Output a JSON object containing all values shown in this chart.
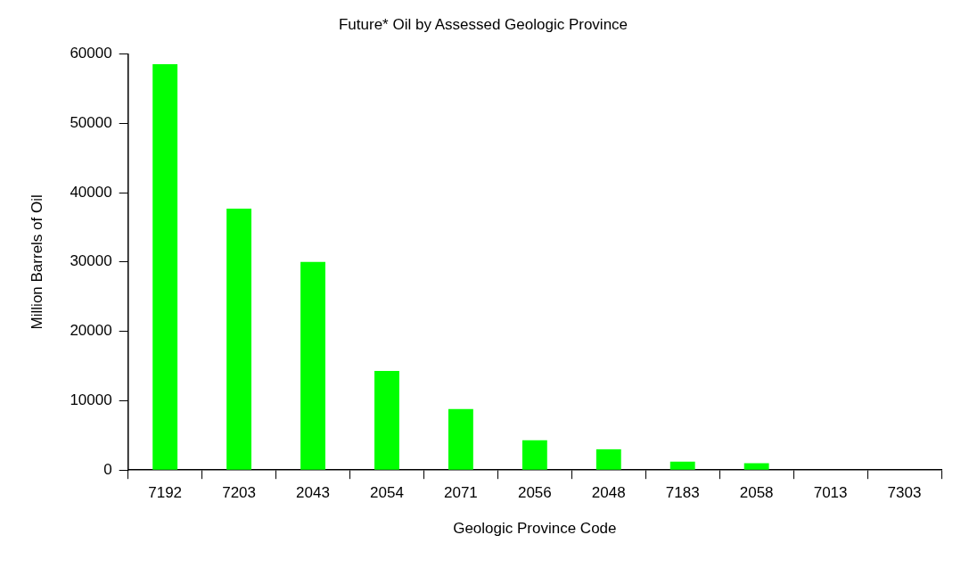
{
  "chart_data": {
    "type": "bar",
    "title": "Future* Oil by Assessed Geologic Province",
    "xlabel": "Geologic Province Code",
    "ylabel": "Million Barrels of Oil",
    "categories": [
      "7192",
      "7203",
      "2043",
      "2054",
      "2071",
      "2056",
      "2048",
      "7183",
      "2058",
      "7013",
      "7303"
    ],
    "values": [
      58500,
      37700,
      30000,
      14300,
      8800,
      4300,
      3000,
      1200,
      1000,
      0,
      0
    ],
    "color": "#00ff00",
    "ylim": [
      0,
      60000
    ],
    "yticks": [
      0,
      10000,
      20000,
      30000,
      40000,
      50000,
      60000
    ],
    "grid": false,
    "legend": false
  }
}
